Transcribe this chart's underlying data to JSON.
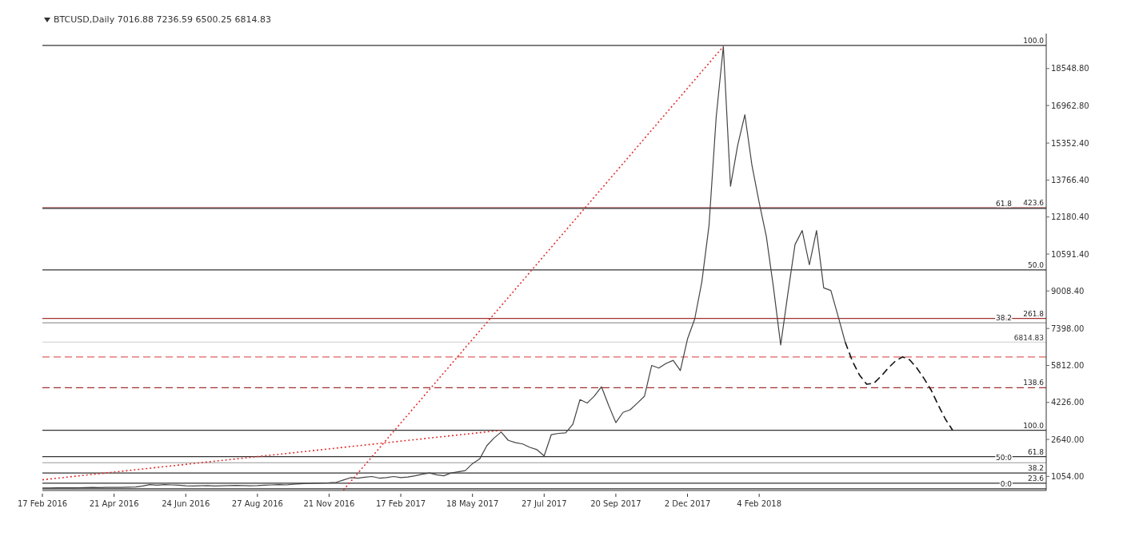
{
  "chart_data": {
    "type": "line",
    "title": "BTCUSD,Daily 7016.88 7236.59 6500.25 6814.83",
    "categories": [
      "17 Feb 2016",
      null,
      null,
      null,
      null,
      null,
      null,
      null,
      null,
      null,
      "21 Apr 2016",
      null,
      null,
      null,
      null,
      null,
      null,
      null,
      null,
      null,
      "24 Jun 2016",
      null,
      null,
      null,
      null,
      null,
      null,
      null,
      null,
      null,
      "27 Aug 2016",
      null,
      null,
      null,
      null,
      null,
      null,
      null,
      null,
      null,
      "21 Nov 2016",
      null,
      null,
      null,
      null,
      null,
      null,
      null,
      null,
      null,
      "17 Feb 2017",
      null,
      null,
      null,
      null,
      null,
      null,
      null,
      null,
      null,
      "18 May 2017",
      null,
      null,
      null,
      null,
      null,
      null,
      null,
      null,
      null,
      "27 Jul 2017",
      null,
      null,
      null,
      null,
      null,
      null,
      null,
      null,
      null,
      "20 Sep 2017",
      null,
      null,
      null,
      null,
      null,
      null,
      null,
      null,
      null,
      "2 Dec 2017",
      null,
      null,
      null,
      null,
      null,
      null,
      null,
      null,
      null,
      "4 Feb 2018",
      null,
      null,
      null,
      null,
      null,
      null,
      null,
      null,
      null,
      null,
      null,
      null,
      null,
      null,
      null,
      null,
      null,
      null,
      null,
      null,
      null,
      null,
      null,
      null,
      null,
      null,
      null,
      null,
      null,
      null
    ],
    "series": [
      {
        "color": "#444444",
        "values": [
          560,
          560,
          565,
          570,
          565,
          570,
          575,
          580,
          575,
          580,
          580,
          585,
          590,
          600,
          640,
          700,
          680,
          700,
          690,
          680,
          650,
          640,
          650,
          660,
          640,
          650,
          660,
          670,
          660,
          650,
          660,
          680,
          690,
          700,
          690,
          720,
          740,
          750,
          760,
          770,
          780,
          800,
          900,
          1000,
          980,
          1020,
          1050,
          980,
          1000,
          1050,
          1000,
          1030,
          1080,
          1150,
          1200,
          1120,
          1080,
          1200,
          1250,
          1300,
          1600,
          1800,
          2370,
          2700,
          2957,
          2600,
          2500,
          2445,
          2300,
          2200,
          1932,
          2847,
          2900,
          2920,
          3286,
          4348,
          4200,
          4500,
          4897,
          4100,
          3360,
          3800,
          3909,
          4200,
          4494,
          5812,
          5700,
          5900,
          6030,
          5592,
          6950,
          7800,
          9400,
          11814,
          16460,
          19500,
          13500,
          15255,
          16570,
          14380,
          12800,
          11340,
          9140,
          6690,
          8890,
          11000,
          11600,
          10130,
          11600,
          9140,
          9030,
          7935,
          6814.83,
          null,
          null,
          null,
          null,
          null,
          null,
          null,
          null,
          null,
          null,
          null,
          null,
          null,
          null,
          null,
          null,
          null,
          null
        ]
      },
      {
        "color": "#111111",
        "line_style": "dashed",
        "values": [
          null,
          null,
          null,
          null,
          null,
          null,
          null,
          null,
          null,
          null,
          null,
          null,
          null,
          null,
          null,
          null,
          null,
          null,
          null,
          null,
          null,
          null,
          null,
          null,
          null,
          null,
          null,
          null,
          null,
          null,
          null,
          null,
          null,
          null,
          null,
          null,
          null,
          null,
          null,
          null,
          null,
          null,
          null,
          null,
          null,
          null,
          null,
          null,
          null,
          null,
          null,
          null,
          null,
          null,
          null,
          null,
          null,
          null,
          null,
          null,
          null,
          null,
          null,
          null,
          null,
          null,
          null,
          null,
          null,
          null,
          null,
          null,
          null,
          null,
          null,
          null,
          null,
          null,
          null,
          null,
          null,
          null,
          null,
          null,
          null,
          null,
          null,
          null,
          null,
          null,
          null,
          null,
          null,
          null,
          null,
          null,
          null,
          null,
          null,
          null,
          null,
          null,
          null,
          null,
          null,
          null,
          null,
          null,
          null,
          null,
          null,
          null,
          6814.83,
          6000,
          5400,
          5007,
          5050,
          5350,
          5700,
          6000,
          6180,
          6050,
          5700,
          5250,
          4750,
          4100,
          3500,
          3030,
          null,
          null,
          null
        ]
      },
      {
        "color": "#e03030",
        "line_style": "dotted",
        "values": [
          908,
          null,
          null,
          null,
          null,
          null,
          null,
          null,
          null,
          null,
          null,
          null,
          null,
          null,
          null,
          null,
          null,
          null,
          null,
          null,
          null,
          null,
          null,
          null,
          null,
          null,
          null,
          null,
          null,
          null,
          null,
          null,
          null,
          null,
          null,
          null,
          null,
          null,
          null,
          null,
          null,
          null,
          null,
          null,
          null,
          null,
          null,
          null,
          null,
          null,
          null,
          null,
          null,
          null,
          null,
          null,
          null,
          null,
          null,
          null,
          null,
          null,
          null,
          null,
          3030,
          null,
          null,
          null,
          null,
          null,
          null,
          null,
          null,
          null,
          null,
          null,
          null,
          null,
          null,
          null,
          null,
          null,
          null,
          null,
          null,
          null,
          null,
          null,
          null,
          null,
          null,
          null,
          null,
          null,
          null,
          null,
          null,
          null,
          null,
          null,
          null,
          null,
          null,
          null,
          null,
          null,
          null,
          null,
          null,
          null,
          null,
          null,
          null,
          null,
          null,
          null,
          null,
          null,
          null,
          null,
          null,
          null,
          null,
          null,
          null,
          null,
          null,
          null,
          null,
          null,
          null
        ]
      },
      {
        "color": "#e03030",
        "line_style": "dotted",
        "values": [
          null,
          null,
          null,
          null,
          null,
          null,
          null,
          null,
          null,
          null,
          null,
          null,
          null,
          null,
          null,
          null,
          null,
          null,
          null,
          null,
          null,
          null,
          null,
          null,
          null,
          null,
          null,
          null,
          null,
          null,
          null,
          null,
          null,
          null,
          null,
          null,
          null,
          null,
          null,
          null,
          null,
          null,
          470,
          null,
          null,
          null,
          null,
          null,
          null,
          null,
          null,
          null,
          null,
          null,
          null,
          null,
          null,
          null,
          null,
          null,
          null,
          null,
          null,
          null,
          null,
          null,
          null,
          null,
          null,
          null,
          null,
          null,
          null,
          null,
          null,
          null,
          null,
          null,
          null,
          null,
          null,
          null,
          null,
          null,
          null,
          null,
          null,
          null,
          null,
          null,
          null,
          null,
          null,
          null,
          null,
          19500,
          null,
          null,
          null,
          null,
          null,
          null,
          null,
          null,
          null,
          null,
          null,
          null,
          null,
          null,
          null,
          null,
          null,
          null,
          null,
          null,
          null,
          null,
          null,
          null,
          null,
          null,
          null,
          null,
          null,
          null,
          null,
          null,
          null,
          null,
          null
        ]
      }
    ],
    "ylim": [
      450,
      20050
    ],
    "yticks": [
      {
        "value": 1054,
        "label": "1054.00"
      },
      {
        "value": 2640,
        "label": "2640.00"
      },
      {
        "value": 4226,
        "label": "4226.00"
      },
      {
        "value": 5812,
        "label": "5812.00"
      },
      {
        "value": 7398,
        "label": "7398.00"
      },
      {
        "value": 9008.4,
        "label": "9008.40"
      },
      {
        "value": 10591.4,
        "label": "10591.40"
      },
      {
        "value": 12180.4,
        "label": "12180.40"
      },
      {
        "value": 13766.4,
        "label": "13766.40"
      },
      {
        "value": 15352.4,
        "label": "15352.40"
      },
      {
        "value": 16962.8,
        "label": "16962.80"
      },
      {
        "value": 18548.8,
        "label": "18548.80"
      }
    ],
    "ref_lines": [
      {
        "axis": "y",
        "value": 19540,
        "color": "#333333"
      },
      {
        "axis": "y",
        "value": 12580,
        "color": "#a03030"
      },
      {
        "axis": "y",
        "value": 12550,
        "color": "#333333"
      },
      {
        "axis": "y",
        "value": 9910,
        "color": "#333333"
      },
      {
        "axis": "y",
        "value": 7830,
        "color": "#a03030"
      },
      {
        "axis": "y",
        "value": 7640,
        "color": "#999999"
      },
      {
        "axis": "y",
        "value": 6814.83,
        "label": "6814.83",
        "color": "#cccccc"
      },
      {
        "axis": "y",
        "value": 6180,
        "color": "#e06060",
        "line_style": "dashed"
      },
      {
        "axis": "y",
        "value": 4860,
        "color": "#a03030",
        "line_style": "dashed"
      },
      {
        "axis": "y",
        "value": 3030,
        "color": "#333333"
      },
      {
        "axis": "y",
        "value": 1900,
        "color": "#333333"
      },
      {
        "axis": "y",
        "value": 1640,
        "color": "#999999"
      },
      {
        "axis": "y",
        "value": 1200,
        "color": "#333333"
      },
      {
        "axis": "y",
        "value": 760,
        "color": "#333333"
      },
      {
        "axis": "y",
        "value": 520,
        "color": "#333333"
      }
    ],
    "annotations": [
      {
        "text": "100.0",
        "y": 19540
      },
      {
        "text": "423.6",
        "y": 12580
      },
      {
        "text": "61.8",
        "y": 12550
      },
      {
        "text": "50.0",
        "y": 9910
      },
      {
        "text": "261.8",
        "y": 7830
      },
      {
        "text": "38.2",
        "y": 7640
      },
      {
        "text": "138.6",
        "y": 4860
      },
      {
        "text": "100.0",
        "y": 3030
      },
      {
        "text": "61.8",
        "y": 1900
      },
      {
        "text": "50.0",
        "y": 1640
      },
      {
        "text": "38.2",
        "y": 1200
      },
      {
        "text": "23.6",
        "y": 760
      },
      {
        "text": "0.0",
        "y": 520
      }
    ]
  }
}
